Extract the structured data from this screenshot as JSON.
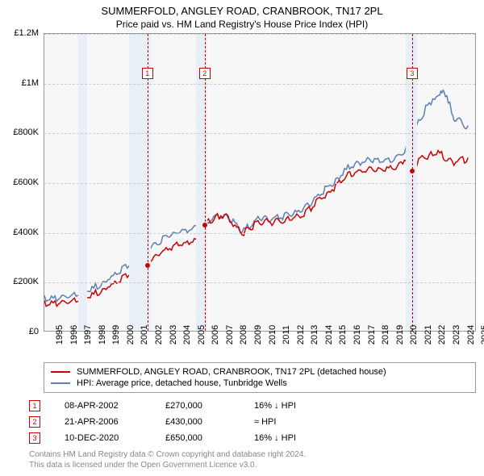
{
  "title": "SUMMERFOLD, ANGLEY ROAD, CRANBROOK, TN17 2PL",
  "subtitle": "Price paid vs. HM Land Registry's House Price Index (HPI)",
  "chart": {
    "background": "#f7f7f7",
    "border_color": "#999999",
    "grid_color": "#cccccc",
    "x_range": [
      1995,
      2025.5
    ],
    "y_range": [
      0,
      1200000
    ],
    "y_ticks": [
      0,
      200000,
      400000,
      600000,
      800000,
      1000000,
      1200000
    ],
    "y_tick_labels": [
      "£0",
      "£200K",
      "£400K",
      "£600K",
      "£800K",
      "£1M",
      "£1.2M"
    ],
    "x_ticks": [
      1995,
      1996,
      1997,
      1998,
      1999,
      2000,
      2001,
      2002,
      2003,
      2004,
      2005,
      2006,
      2007,
      2008,
      2009,
      2010,
      2011,
      2012,
      2013,
      2014,
      2015,
      2016,
      2017,
      2018,
      2019,
      2020,
      2021,
      2022,
      2023,
      2024,
      2025
    ],
    "bands": [
      {
        "start": 1997.4,
        "end": 1998.0,
        "color": "#e8eff7"
      },
      {
        "start": 2001.0,
        "end": 2002.5,
        "color": "#e8eff7"
      },
      {
        "start": 2005.7,
        "end": 2006.5,
        "color": "#e8eff7"
      },
      {
        "start": 2020.5,
        "end": 2021.3,
        "color": "#e8eff7"
      }
    ],
    "vlines": [
      {
        "x": 2002.27,
        "color": "#cc0000",
        "label": "1"
      },
      {
        "x": 2006.3,
        "color": "#cc0000",
        "label": "2"
      },
      {
        "x": 2020.94,
        "color": "#cc0000",
        "label": "3"
      }
    ],
    "series": [
      {
        "name": "hpi",
        "color": "#5a7fb0",
        "width": 1.5,
        "points": [
          [
            1995.0,
            140000
          ],
          [
            1995.5,
            135000
          ],
          [
            1996.0,
            140000
          ],
          [
            1996.5,
            145000
          ],
          [
            1997.0,
            150000
          ],
          [
            1997.5,
            160000
          ],
          [
            1998.0,
            170000
          ],
          [
            1998.5,
            180000
          ],
          [
            1999.0,
            195000
          ],
          [
            1999.5,
            215000
          ],
          [
            2000.0,
            235000
          ],
          [
            2000.5,
            255000
          ],
          [
            2001.0,
            270000
          ],
          [
            2001.5,
            285000
          ],
          [
            2002.0,
            310000
          ],
          [
            2002.5,
            340000
          ],
          [
            2003.0,
            360000
          ],
          [
            2003.5,
            380000
          ],
          [
            2004.0,
            395000
          ],
          [
            2004.5,
            410000
          ],
          [
            2005.0,
            415000
          ],
          [
            2005.5,
            420000
          ],
          [
            2006.0,
            430000
          ],
          [
            2006.5,
            445000
          ],
          [
            2007.0,
            460000
          ],
          [
            2007.5,
            475000
          ],
          [
            2008.0,
            470000
          ],
          [
            2008.5,
            440000
          ],
          [
            2009.0,
            410000
          ],
          [
            2009.5,
            430000
          ],
          [
            2010.0,
            455000
          ],
          [
            2010.5,
            465000
          ],
          [
            2011.0,
            460000
          ],
          [
            2011.5,
            465000
          ],
          [
            2012.0,
            470000
          ],
          [
            2012.5,
            480000
          ],
          [
            2013.0,
            490000
          ],
          [
            2013.5,
            505000
          ],
          [
            2014.0,
            530000
          ],
          [
            2014.5,
            560000
          ],
          [
            2015.0,
            585000
          ],
          [
            2015.5,
            610000
          ],
          [
            2016.0,
            640000
          ],
          [
            2016.5,
            665000
          ],
          [
            2017.0,
            680000
          ],
          [
            2017.5,
            690000
          ],
          [
            2018.0,
            695000
          ],
          [
            2018.5,
            700000
          ],
          [
            2019.0,
            700000
          ],
          [
            2019.5,
            700000
          ],
          [
            2020.0,
            710000
          ],
          [
            2020.5,
            740000
          ],
          [
            2021.0,
            790000
          ],
          [
            2021.5,
            850000
          ],
          [
            2022.0,
            905000
          ],
          [
            2022.5,
            945000
          ],
          [
            2023.0,
            960000
          ],
          [
            2023.3,
            975000
          ],
          [
            2023.7,
            920000
          ],
          [
            2024.0,
            870000
          ],
          [
            2024.5,
            850000
          ],
          [
            2025.0,
            830000
          ]
        ]
      },
      {
        "name": "property",
        "color": "#cc0000",
        "width": 1.5,
        "points": [
          [
            1995.0,
            120000
          ],
          [
            1995.5,
            115000
          ],
          [
            1996.0,
            120000
          ],
          [
            1996.5,
            122000
          ],
          [
            1997.0,
            128000
          ],
          [
            1997.5,
            135000
          ],
          [
            1998.0,
            145000
          ],
          [
            1998.5,
            155000
          ],
          [
            1999.0,
            168000
          ],
          [
            1999.5,
            185000
          ],
          [
            2000.0,
            200000
          ],
          [
            2000.5,
            218000
          ],
          [
            2001.0,
            232000
          ],
          [
            2001.5,
            245000
          ],
          [
            2002.0,
            265000
          ],
          [
            2002.27,
            270000
          ],
          [
            2002.5,
            292000
          ],
          [
            2003.0,
            312000
          ],
          [
            2003.5,
            330000
          ],
          [
            2004.0,
            345000
          ],
          [
            2004.5,
            358000
          ],
          [
            2005.0,
            362000
          ],
          [
            2005.5,
            368000
          ],
          [
            2006.0,
            378000
          ],
          [
            2006.3,
            430000
          ],
          [
            2006.5,
            443000
          ],
          [
            2007.0,
            460000
          ],
          [
            2007.5,
            475000
          ],
          [
            2008.0,
            468000
          ],
          [
            2008.5,
            432000
          ],
          [
            2009.0,
            400000
          ],
          [
            2009.5,
            420000
          ],
          [
            2010.0,
            442000
          ],
          [
            2010.5,
            450000
          ],
          [
            2011.0,
            445000
          ],
          [
            2011.5,
            450000
          ],
          [
            2012.0,
            455000
          ],
          [
            2012.5,
            462000
          ],
          [
            2013.0,
            472000
          ],
          [
            2013.5,
            486000
          ],
          [
            2014.0,
            510000
          ],
          [
            2014.5,
            538000
          ],
          [
            2015.0,
            562000
          ],
          [
            2015.5,
            585000
          ],
          [
            2016.0,
            612000
          ],
          [
            2016.5,
            634000
          ],
          [
            2017.0,
            648000
          ],
          [
            2017.5,
            656000
          ],
          [
            2018.0,
            660000
          ],
          [
            2018.5,
            664000
          ],
          [
            2019.0,
            664000
          ],
          [
            2019.5,
            664000
          ],
          [
            2020.0,
            672000
          ],
          [
            2020.5,
            698000
          ],
          [
            2020.94,
            650000
          ],
          [
            2021.1,
            658000
          ],
          [
            2021.5,
            700000
          ],
          [
            2022.0,
            710000
          ],
          [
            2022.5,
            720000
          ],
          [
            2023.0,
            725000
          ],
          [
            2023.5,
            700000
          ],
          [
            2024.0,
            690000
          ],
          [
            2024.5,
            695000
          ],
          [
            2025.0,
            700000
          ]
        ]
      }
    ],
    "sale_points": [
      {
        "x": 2002.27,
        "y": 270000,
        "color": "#cc0000"
      },
      {
        "x": 2006.3,
        "y": 430000,
        "color": "#cc0000"
      },
      {
        "x": 2020.94,
        "y": 650000,
        "color": "#cc0000"
      }
    ]
  },
  "legend": {
    "items": [
      {
        "label": "SUMMERFOLD, ANGLEY ROAD, CRANBROOK, TN17 2PL (detached house)",
        "color": "#cc0000"
      },
      {
        "label": "HPI: Average price, detached house, Tunbridge Wells",
        "color": "#5a7fb0"
      }
    ]
  },
  "sales": [
    {
      "marker": "1",
      "date": "08-APR-2002",
      "price": "£270,000",
      "diff": "16% ↓ HPI",
      "color": "#cc0000"
    },
    {
      "marker": "2",
      "date": "21-APR-2006",
      "price": "£430,000",
      "diff": "≈ HPI",
      "color": "#cc0000"
    },
    {
      "marker": "3",
      "date": "10-DEC-2020",
      "price": "£650,000",
      "diff": "16% ↓ HPI",
      "color": "#cc0000"
    }
  ],
  "attribution": {
    "line1": "Contains HM Land Registry data © Crown copyright and database right 2024.",
    "line2": "This data is licensed under the Open Government Licence v3.0."
  }
}
